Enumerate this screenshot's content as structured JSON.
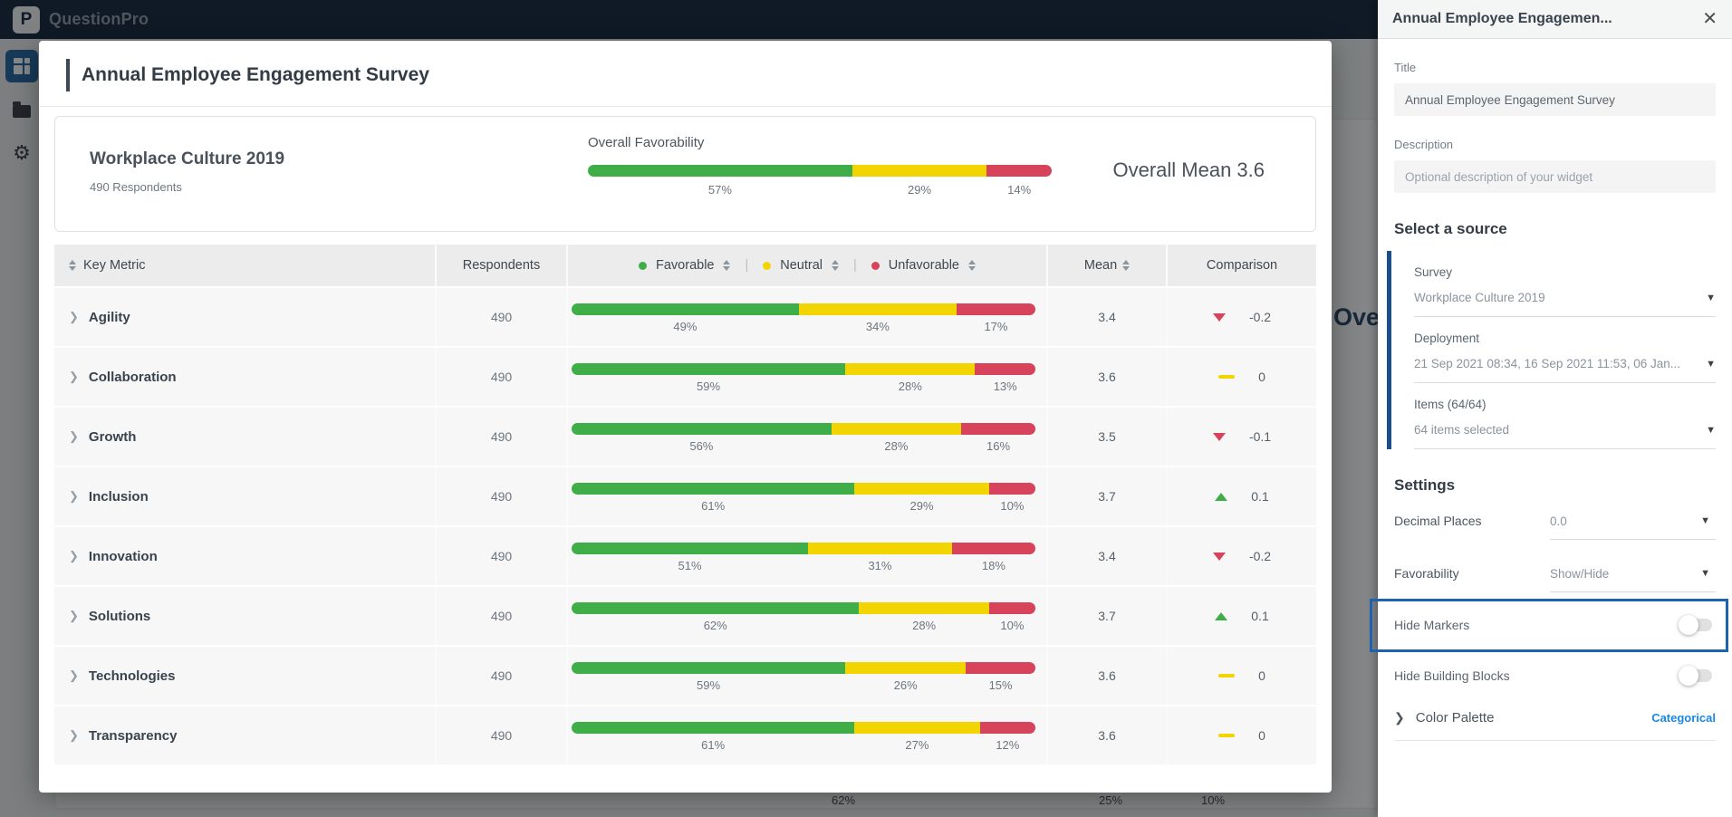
{
  "header": {
    "brand": "QuestionPro"
  },
  "background": {
    "partial_title": "Over",
    "faint_values": [
      "62%",
      "25%",
      "10%"
    ]
  },
  "modal": {
    "title": "Annual Employee Engagement Survey",
    "summary": {
      "survey_name": "Workplace Culture 2019",
      "respondents": "490 Respondents",
      "favorability_label": "Overall Favorability",
      "favorable": 57,
      "neutral": 29,
      "unfavorable": 14,
      "overall_mean": "Overall Mean 3.6"
    },
    "table": {
      "headers": {
        "key_metric": "Key Metric",
        "respondents": "Respondents",
        "favorable": "Favorable",
        "neutral": "Neutral",
        "unfavorable": "Unfavorable",
        "divider": "|",
        "mean": "Mean",
        "comparison": "Comparison"
      },
      "rows": [
        {
          "name": "Agility",
          "respondents": "490",
          "favorable": 49,
          "neutral": 34,
          "unfavorable": 17,
          "mean": "3.4",
          "comparison": "-0.2",
          "trend": "down"
        },
        {
          "name": "Collaboration",
          "respondents": "490",
          "favorable": 59,
          "neutral": 28,
          "unfavorable": 13,
          "mean": "3.6",
          "comparison": "0",
          "trend": "flat"
        },
        {
          "name": "Growth",
          "respondents": "490",
          "favorable": 56,
          "neutral": 28,
          "unfavorable": 16,
          "mean": "3.5",
          "comparison": "-0.1",
          "trend": "down"
        },
        {
          "name": "Inclusion",
          "respondents": "490",
          "favorable": 61,
          "neutral": 29,
          "unfavorable": 10,
          "mean": "3.7",
          "comparison": "0.1",
          "trend": "up"
        },
        {
          "name": "Innovation",
          "respondents": "490",
          "favorable": 51,
          "neutral": 31,
          "unfavorable": 18,
          "mean": "3.4",
          "comparison": "-0.2",
          "trend": "down"
        },
        {
          "name": "Solutions",
          "respondents": "490",
          "favorable": 62,
          "neutral": 28,
          "unfavorable": 10,
          "mean": "3.7",
          "comparison": "0.1",
          "trend": "up"
        },
        {
          "name": "Technologies",
          "respondents": "490",
          "favorable": 59,
          "neutral": 26,
          "unfavorable": 15,
          "mean": "3.6",
          "comparison": "0",
          "trend": "flat"
        },
        {
          "name": "Transparency",
          "respondents": "490",
          "favorable": 61,
          "neutral": 27,
          "unfavorable": 12,
          "mean": "3.6",
          "comparison": "0",
          "trend": "flat"
        }
      ]
    }
  },
  "panel": {
    "header_title": "Annual Employee Engagemen...",
    "close_glyph": "✕",
    "title_label": "Title",
    "title_value": "Annual Employee Engagement Survey",
    "description_label": "Description",
    "description_placeholder": "Optional description of your widget",
    "source_heading": "Select a source",
    "survey_label": "Survey",
    "survey_value": "Workplace Culture 2019",
    "deployment_label": "Deployment",
    "deployment_value": "21 Sep 2021 08:34, 16 Sep 2021 11:53, 06 Jan...",
    "items_label": "Items (64/64)",
    "items_value": "64 items selected",
    "settings_heading": "Settings",
    "decimal_label": "Decimal Places",
    "decimal_value": "0.0",
    "favorability_label": "Favorability",
    "favorability_value": "Show/Hide",
    "hide_markers_label": "Hide Markers",
    "hide_blocks_label": "Hide Building Blocks",
    "color_palette_label": "Color Palette",
    "color_palette_value": "Categorical"
  },
  "colors": {
    "favorable": "#3fae49",
    "neutral": "#f2d500",
    "unfavorable": "#d6435b",
    "header_navy": "#0a1d33",
    "accent_blue": "#1b87e6",
    "highlight_border": "#1e63b0",
    "source_bar": "#1c4e89"
  }
}
